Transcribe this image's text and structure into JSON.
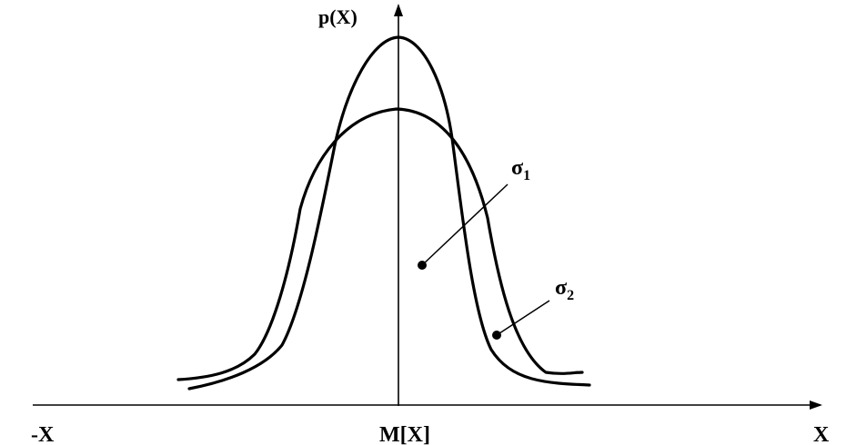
{
  "diagram": {
    "y_axis_label": "p(X)",
    "x_axis_label": "X",
    "x_left_label": "-X",
    "center_label": "M[X]",
    "sigma_1": {
      "symbol": "σ",
      "subscript": "1"
    },
    "sigma_2": {
      "symbol": "σ",
      "subscript": "2"
    }
  }
}
